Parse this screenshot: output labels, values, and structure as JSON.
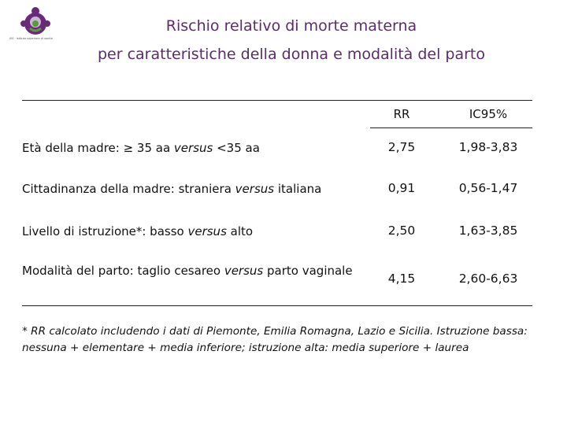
{
  "logo": {
    "name": "person-group-logo",
    "caption": "ISS · istituto superiore di sanità",
    "colors": {
      "purple": "#6a2a7a",
      "green": "#5a9a3a",
      "inner": "#c9b7d3"
    }
  },
  "title": {
    "line1": "Rischio relativo di morte materna",
    "line2": "per caratteristiche della donna e modalità del parto",
    "color": "#5b2b6b"
  },
  "table": {
    "headers": {
      "rr": "RR",
      "ci": "IC95%"
    },
    "rows": [
      {
        "label_before": "Età della madre: ≥ 35 aa ",
        "label_italic": "versus",
        "label_after": " <35 aa",
        "rr": "2,75",
        "ci": "1,98-3,83"
      },
      {
        "label_before": "Cittadinanza della madre: straniera ",
        "label_italic": "versus",
        "label_after": " italiana",
        "rr": "0,91",
        "ci": "0,56-1,47"
      },
      {
        "label_before": "Livello di istruzione*: basso ",
        "label_italic": "versus",
        "label_after": " alto",
        "rr": "2,50",
        "ci": "1,63-3,85"
      },
      {
        "label_before": "Modalità del parto: taglio cesareo ",
        "label_italic": "versus",
        "label_after": " parto vaginale",
        "rr": "4,15",
        "ci": "2,60-6,63"
      }
    ]
  },
  "footnote": "* RR calcolato includendo i dati di Piemonte, Emilia Romagna, Lazio e Sicilia. Istruzione bassa: nessuna + elementare + media inferiore; istruzione alta: media superiore + laurea"
}
